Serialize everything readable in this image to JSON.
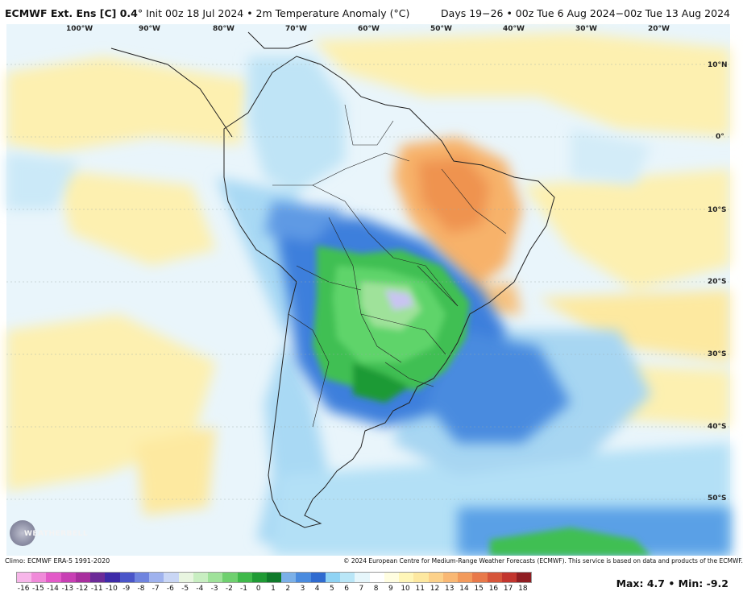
{
  "header": {
    "model": "ECMWF Ext. Ens [C] 0.4",
    "init": "Init 00z 18 Jul 2024 • 2m Temperature Anomaly (°C)",
    "valid": "Days 19−26 • 00z Tue 6 Aug 2024−00z Tue 13 Aug 2024"
  },
  "map": {
    "lon_labels": [
      "100°W",
      "90°W",
      "80°W",
      "70°W",
      "60°W",
      "50°W",
      "40°W",
      "30°W",
      "20°W"
    ],
    "lat_labels": [
      "10°N",
      "0°",
      "10°S",
      "20°S",
      "30°S",
      "40°S",
      "50°S"
    ],
    "logo_text": "WEATHERBELL"
  },
  "footer": {
    "climo": "Climo: ECMWF ERA-5 1991-2020",
    "copyright": "© 2024 European Centre for Medium-Range Weather Forecasts (ECMWF). This service is based on data and products of the ECMWF.",
    "max_min": "Max: 4.7 • Min: -9.2",
    "scale_labels": [
      "-16",
      "-15",
      "-14",
      "-13",
      "-12",
      "-11",
      "-10",
      "-9",
      "-8",
      "-7",
      "-6",
      "-5",
      "-4",
      "-3",
      "-2",
      "-1",
      "0",
      "1",
      "2",
      "3",
      "4",
      "5",
      "6",
      "7",
      "8",
      "9",
      "10",
      "11",
      "12",
      "13",
      "14",
      "15",
      "16",
      "17",
      "18"
    ],
    "scale_colors": [
      "#f7b6e9",
      "#f08ad9",
      "#e35ac8",
      "#c83fb4",
      "#a82e9e",
      "#6c2a98",
      "#3d2aa8",
      "#4a55c9",
      "#6f84df",
      "#9fb2ee",
      "#c9d6f5",
      "#e8f5e0",
      "#c8eec1",
      "#9fe29a",
      "#6fd06f",
      "#3fb94a",
      "#1f9a34",
      "#0f7a2a",
      "#7bb0e8",
      "#4a8bdf",
      "#2f6bd0",
      "#8fd3f4",
      "#b9e6f7",
      "#e6f6fb",
      "#ffffff",
      "#fffde0",
      "#fff6b8",
      "#fde8a0",
      "#fcd18a",
      "#f9b874",
      "#f29a5c",
      "#e8794a",
      "#d6553a",
      "#c2352e",
      "#8f1d22"
    ]
  },
  "colors": {
    "ocean_neutral": "#eef7fc",
    "warm_yellow": "#fdf1b5",
    "warm_orange": "#f6b46b",
    "cool_lightblue": "#b9e3f7",
    "cool_blue": "#3a7fe0",
    "cold_green": "#36c04a",
    "border": "#222222"
  }
}
